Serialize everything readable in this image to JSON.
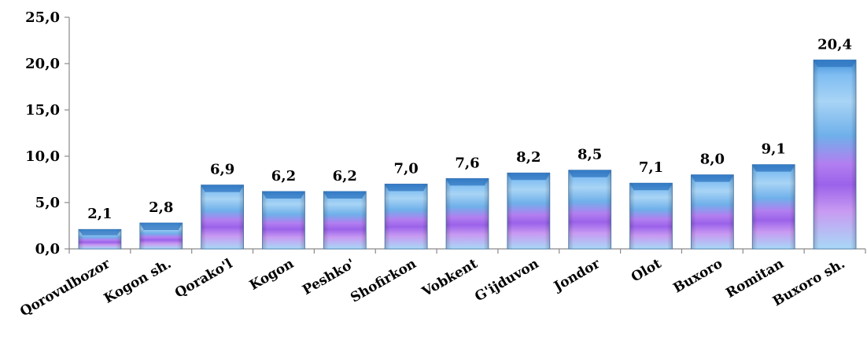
{
  "chart_data": {
    "type": "bar",
    "title": "",
    "xlabel": "",
    "ylabel": "",
    "ylim": [
      0,
      25
    ],
    "yticks": [
      "0,0",
      "5,0",
      "10,0",
      "15,0",
      "20,0",
      "25,0"
    ],
    "categories": [
      "Qorovulbozor",
      "Kogon sh.",
      "Qorako'l",
      "Kogon",
      "Peshko'",
      "Shofirkon",
      "Vobkent",
      "G'ijduvon",
      "Jondor",
      "Olot",
      "Buxoro",
      "Romitan",
      "Buxoro sh."
    ],
    "values": [
      2.1,
      2.8,
      6.9,
      6.2,
      6.2,
      7.0,
      7.6,
      8.2,
      8.5,
      7.1,
      8.0,
      9.1,
      20.4
    ],
    "value_labels": [
      "2,1",
      "2,8",
      "6,9",
      "6,2",
      "6,2",
      "7,0",
      "7,6",
      "8,2",
      "8,5",
      "7,1",
      "8,0",
      "9,1",
      "20,4"
    ],
    "grid": false,
    "legend": "none",
    "colors": {
      "axis": "#8a8a8a",
      "bar_top": "#3f8fd6",
      "bar_light_blue": "#a8d4f5",
      "bar_mid_blue": "#6fb0ea",
      "bar_violet": "#b27ff0",
      "bar_purple": "#9b62ea"
    }
  }
}
